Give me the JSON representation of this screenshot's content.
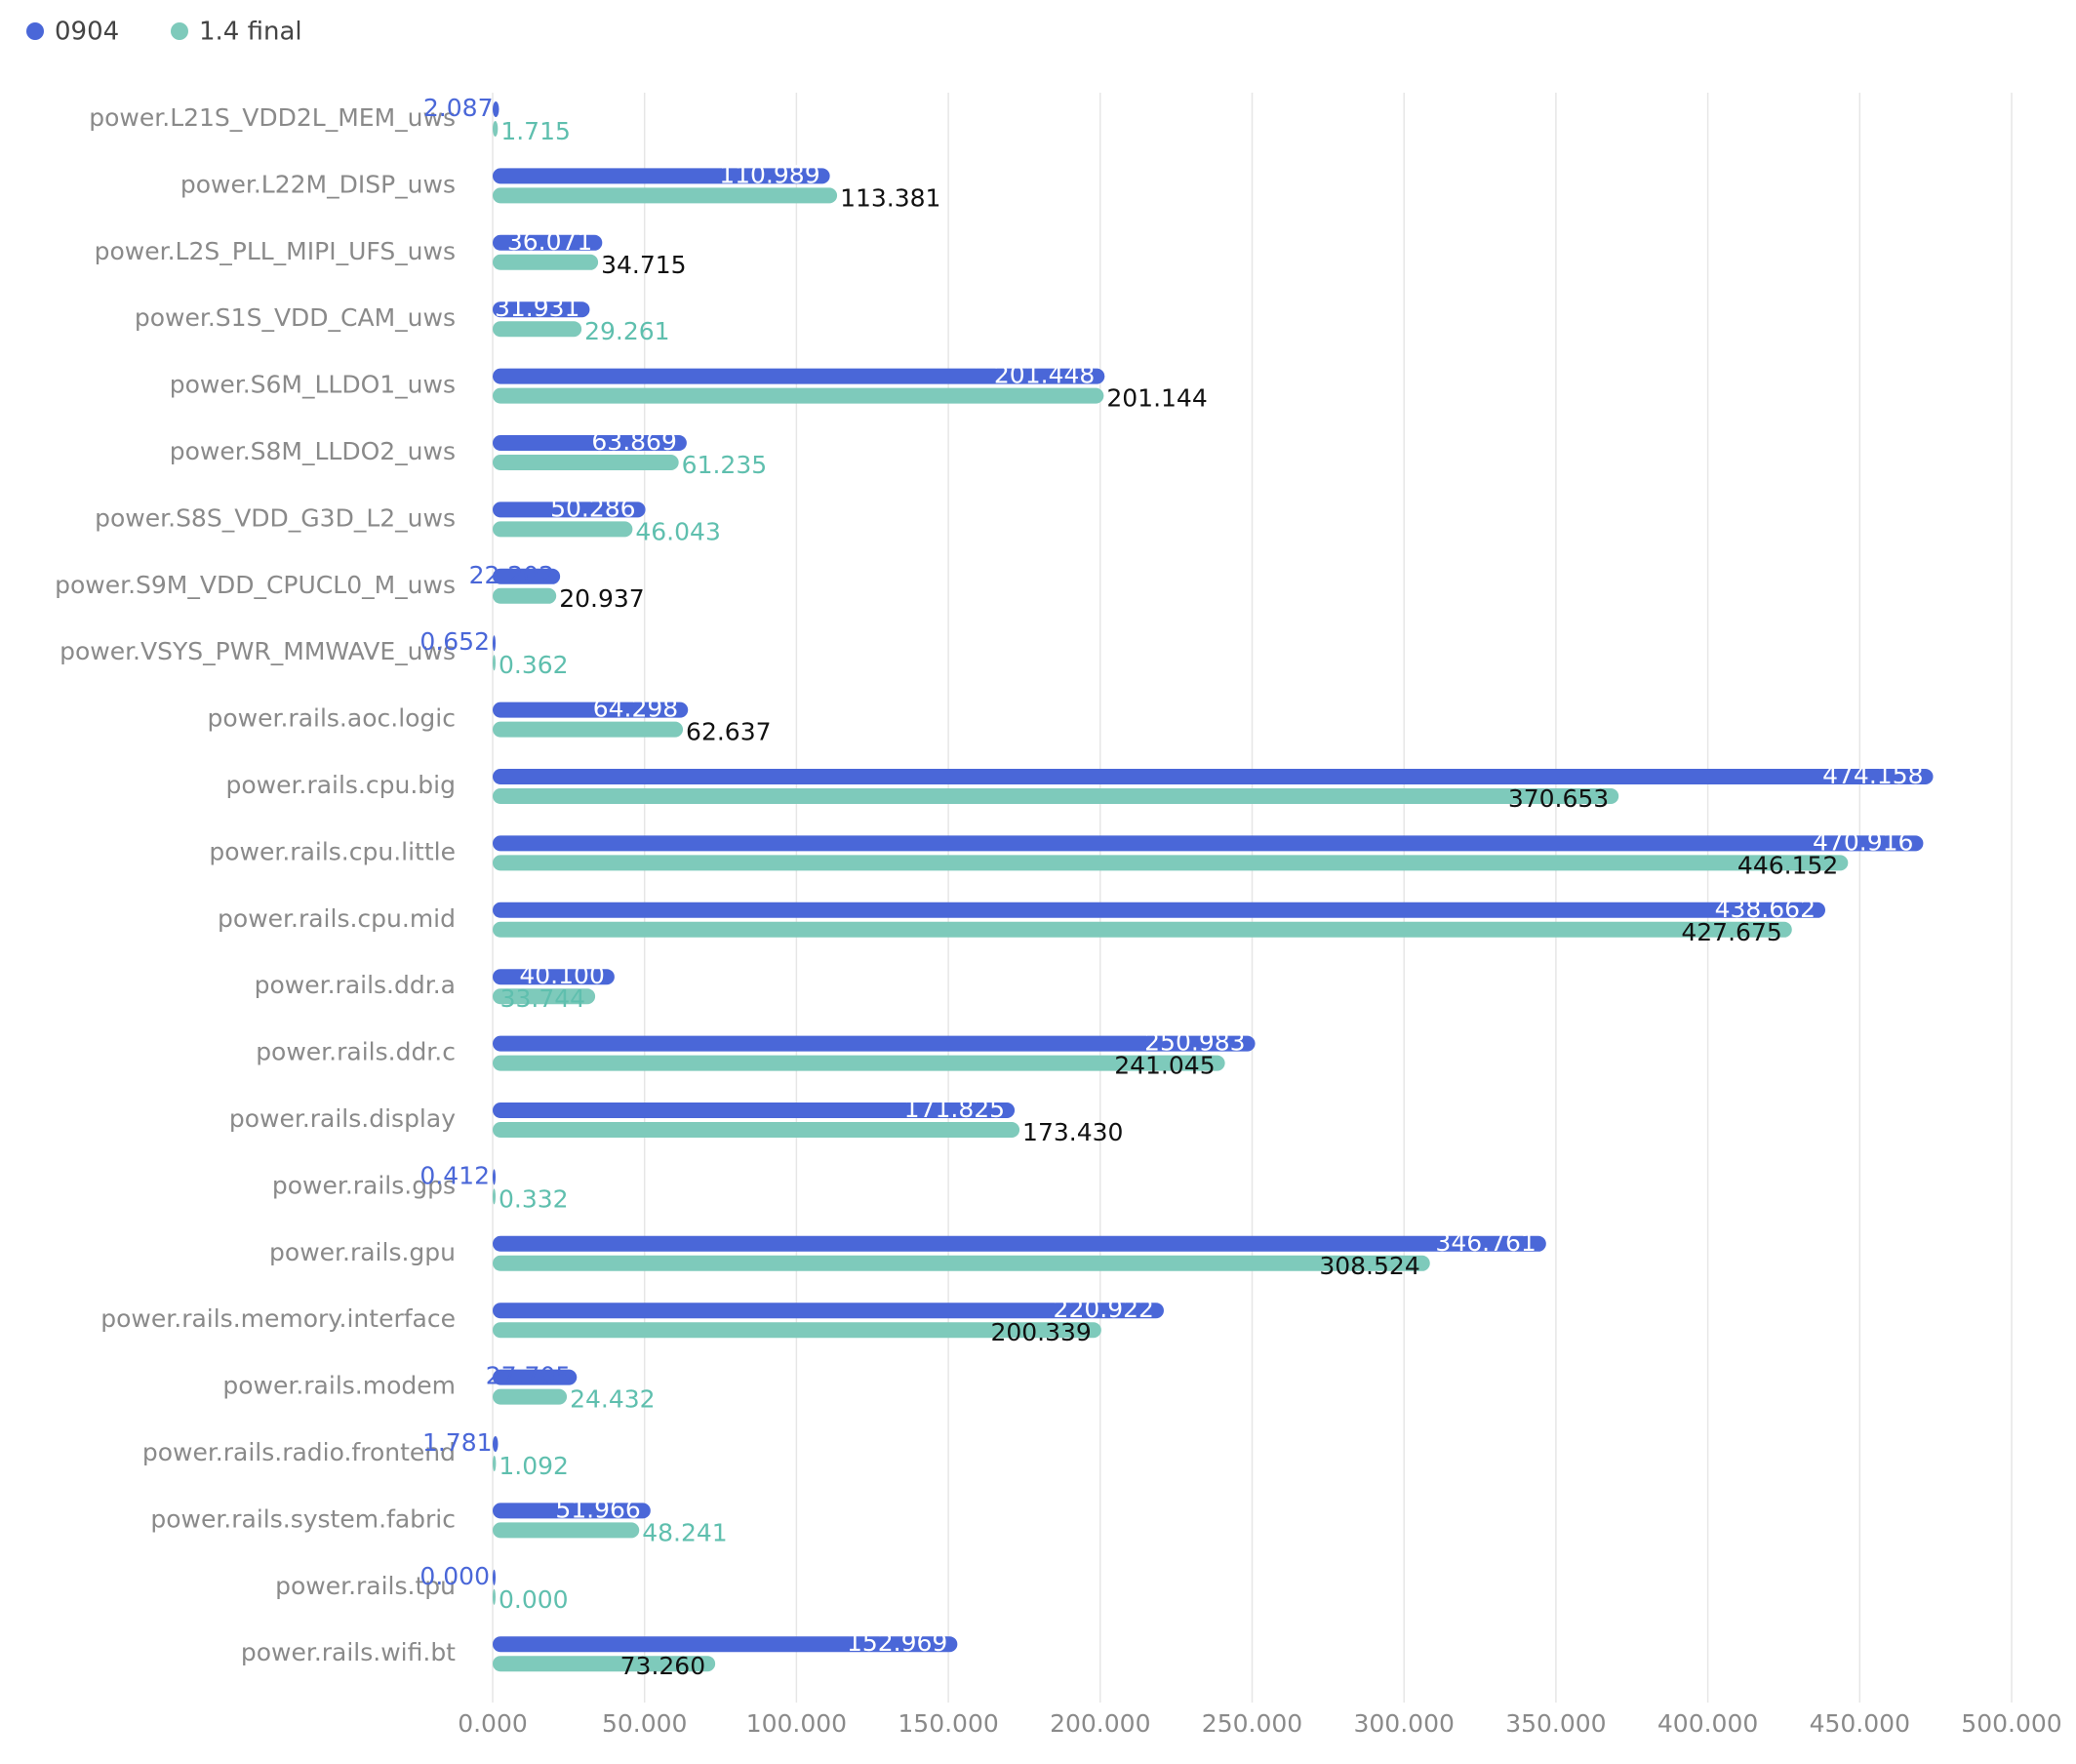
{
  "chart_data": {
    "type": "bar",
    "orientation": "horizontal",
    "categories": [
      "power.L21S_VDD2L_MEM_uws",
      "power.L22M_DISP_uws",
      "power.L2S_PLL_MIPI_UFS_uws",
      "power.S1S_VDD_CAM_uws",
      "power.S6M_LLDO1_uws",
      "power.S8M_LLDO2_uws",
      "power.S8S_VDD_G3D_L2_uws",
      "power.S9M_VDD_CPUCL0_M_uws",
      "power.VSYS_PWR_MMWAVE_uws",
      "power.rails.aoc.logic",
      "power.rails.cpu.big",
      "power.rails.cpu.little",
      "power.rails.cpu.mid",
      "power.rails.ddr.a",
      "power.rails.ddr.c",
      "power.rails.display",
      "power.rails.gps",
      "power.rails.gpu",
      "power.rails.memory.interface",
      "power.rails.modem",
      "power.rails.radio.frontend",
      "power.rails.system.fabric",
      "power.rails.tpu",
      "power.rails.wifi.bt"
    ],
    "series": [
      {
        "name": "0904",
        "color": "#4a67d8",
        "values": [
          2.087,
          110.989,
          36.071,
          31.931,
          201.448,
          63.869,
          50.286,
          22.202,
          0.652,
          64.298,
          474.158,
          470.916,
          438.662,
          40.1,
          250.983,
          171.825,
          0.412,
          346.761,
          220.922,
          27.705,
          1.781,
          51.966,
          0,
          152.969
        ],
        "value_labels": [
          "2.087",
          "110.989",
          "36.071",
          "31.931",
          "201.448",
          "63.869",
          "50.286",
          "22.202",
          "0.652",
          "64.298",
          "474.158",
          "470.916",
          "438.662",
          "40.100",
          "250.983",
          "171.825",
          "0.412",
          "346.761",
          "220.922",
          "27.705",
          "1.781",
          "51.966",
          "0.000",
          "152.969"
        ]
      },
      {
        "name": "1.4 final",
        "color": "#7ecabb",
        "values": [
          1.715,
          113.381,
          34.715,
          29.261,
          201.144,
          61.235,
          46.043,
          20.937,
          0.362,
          62.637,
          370.653,
          446.152,
          427.675,
          33.744,
          241.045,
          173.43,
          0.332,
          308.524,
          200.339,
          24.432,
          1.092,
          48.241,
          0,
          73.26
        ],
        "value_labels": [
          "1.715",
          "113.381",
          "34.715",
          "29.261",
          "201.144",
          "61.235",
          "46.043",
          "20.937",
          "0.362",
          "62.637",
          "370.653",
          "446.152",
          "427.675",
          "33.744",
          "241.045",
          "173.430",
          "0.332",
          "308.524",
          "200.339",
          "24.432",
          "1.092",
          "48.241",
          "0.000",
          "73.260"
        ],
        "label_colors": [
          "#5fbfae",
          "#111111",
          "#111111",
          "#5fbfae",
          "#111111",
          "#5fbfae",
          "#5fbfae",
          "#111111",
          "#5fbfae",
          "#111111",
          "#111111",
          "#111111",
          "#111111",
          "#5fbfae",
          "#111111",
          "#111111",
          "#5fbfae",
          "#111111",
          "#111111",
          "#5fbfae",
          "#5fbfae",
          "#5fbfae",
          "#5fbfae",
          "#111111"
        ]
      }
    ],
    "xlim": [
      0,
      500
    ],
    "xticks": [
      {
        "value": 0,
        "label": "0.000"
      },
      {
        "value": 50,
        "label": "50.000"
      },
      {
        "value": 100,
        "label": "100.000"
      },
      {
        "value": 150,
        "label": "150.000"
      },
      {
        "value": 200,
        "label": "200.000"
      },
      {
        "value": 250,
        "label": "250.000"
      },
      {
        "value": 300,
        "label": "300.000"
      },
      {
        "value": 350,
        "label": "350.000"
      },
      {
        "value": 400,
        "label": "400.000"
      },
      {
        "value": 450,
        "label": "450.000"
      },
      {
        "value": 500,
        "label": "500.000"
      }
    ],
    "grid": true,
    "legend": "top-left"
  }
}
